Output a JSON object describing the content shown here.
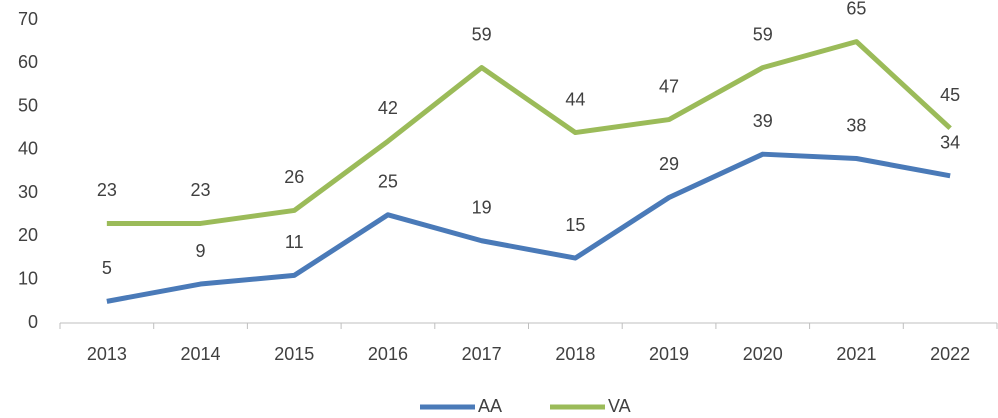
{
  "chart_data": {
    "type": "line",
    "categories": [
      "2013",
      "2014",
      "2015",
      "2016",
      "2017",
      "2018",
      "2019",
      "2020",
      "2021",
      "2022"
    ],
    "series": [
      {
        "name": "AA",
        "color": "#4a7ab8",
        "values": [
          5,
          9,
          11,
          25,
          19,
          15,
          29,
          39,
          38,
          34
        ]
      },
      {
        "name": "VA",
        "color": "#9bbb59",
        "values": [
          23,
          23,
          26,
          42,
          59,
          44,
          47,
          59,
          65,
          45
        ]
      }
    ],
    "ylim": [
      0,
      70
    ],
    "yticks": [
      0,
      10,
      20,
      30,
      40,
      50,
      60,
      70
    ],
    "grid": false,
    "legend": "bottom"
  }
}
